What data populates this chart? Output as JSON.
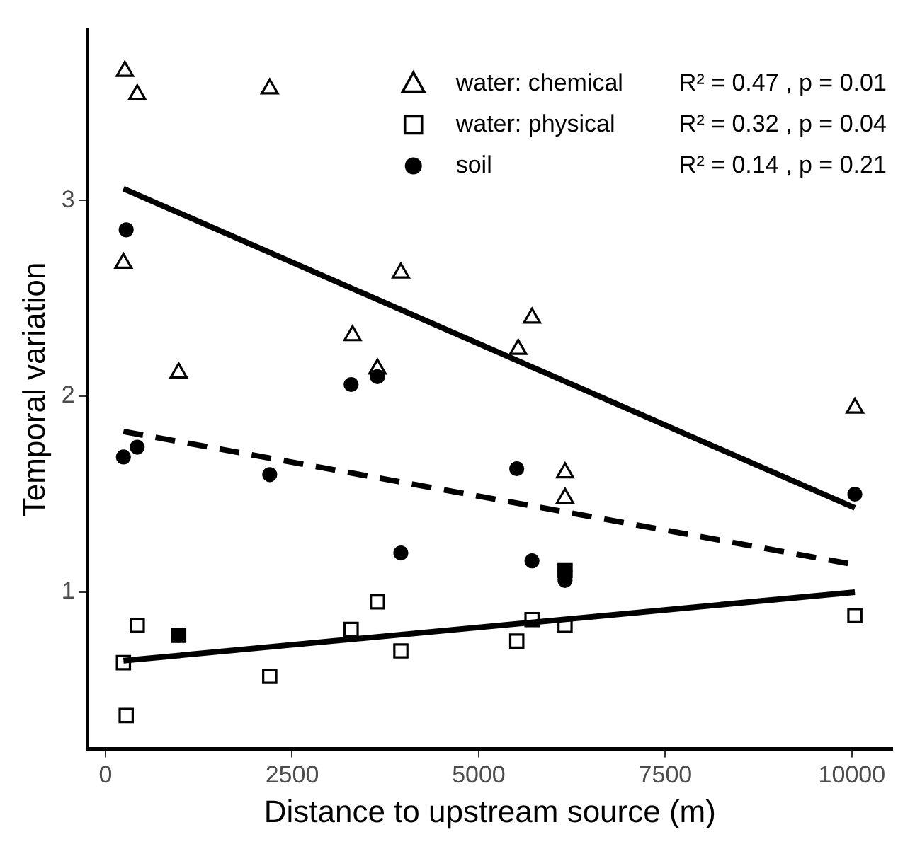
{
  "chart_data": {
    "type": "scatter",
    "xlabel": "Distance to upstream source (m)",
    "ylabel": "Temporal variation",
    "xlim": [
      -240,
      10540
    ],
    "xticks": [
      0,
      2500,
      5000,
      7500,
      10000
    ],
    "ylim": [
      0.2,
      3.87
    ],
    "yticks": [
      1,
      2,
      3
    ],
    "grid": false,
    "legend": "top right",
    "annotations": [
      "R² = 0.47 , p = 0.01",
      "R² = 0.32 , p = 0.04",
      "R² = 0.14 , p = 0.21"
    ],
    "series": [
      {
        "name": "water: chemical",
        "marker": "triangle",
        "color": "#000000",
        "x": [
          259,
          425,
          2200,
          240,
          3957,
          3310,
          3643,
          980,
          5714,
          5529,
          10040,
          6157,
          6157
        ],
        "values": [
          3.66,
          3.54,
          3.57,
          2.68,
          2.63,
          2.31,
          2.14,
          2.12,
          2.4,
          2.24,
          1.94,
          1.61,
          1.48
        ]
      },
      {
        "name": "water: physical",
        "marker": "square",
        "color": "#000000",
        "x": [
          240,
          425,
          980,
          277,
          2200,
          3291,
          3643,
          3957,
          5510,
          5714,
          6157,
          6157,
          10040
        ],
        "values": [
          0.64,
          0.83,
          0.78,
          0.37,
          0.57,
          0.81,
          0.95,
          0.7,
          0.75,
          0.86,
          0.83,
          1.11,
          0.88
        ]
      },
      {
        "name": "soil",
        "marker": "circle",
        "color": "#000000",
        "x": [
          277,
          3291,
          3643,
          240,
          425,
          2200,
          3957,
          5510,
          5714,
          6157,
          6157,
          10040,
          980
        ],
        "values": [
          2.85,
          2.06,
          2.1,
          1.69,
          1.74,
          1.6,
          1.2,
          1.63,
          1.16,
          1.11,
          1.06,
          1.5,
          0.78
        ]
      },
      {
        "type": "line",
        "line_style": "solid",
        "color": "#000000",
        "x": [
          240,
          10040
        ],
        "values": [
          3.06,
          1.43
        ]
      },
      {
        "type": "line",
        "line_style": "solid",
        "color": "#000000",
        "x": [
          240,
          10040
        ],
        "values": [
          0.65,
          1.0
        ]
      },
      {
        "type": "line",
        "line_style": "dashed",
        "color": "#000000",
        "x": [
          240,
          10040
        ],
        "values": [
          1.82,
          1.14
        ]
      }
    ]
  }
}
